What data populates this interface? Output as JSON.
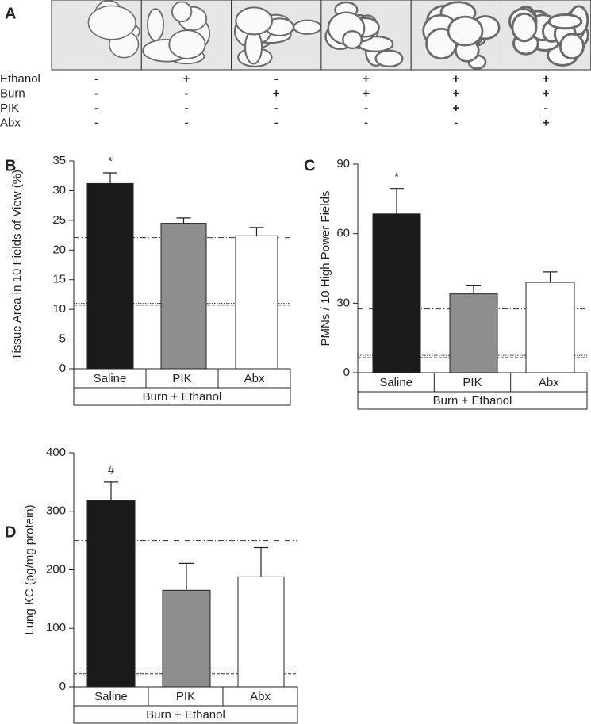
{
  "panel_a": {
    "label": "A",
    "rows": [
      {
        "name": "Ethanol",
        "values": [
          "-",
          "+",
          "-",
          "+",
          "+",
          "+"
        ]
      },
      {
        "name": "Burn",
        "values": [
          "-",
          "-",
          "+",
          "+",
          "+",
          "+"
        ]
      },
      {
        "name": "PIK",
        "values": [
          "-",
          "-",
          "-",
          "-",
          "+",
          "-"
        ]
      },
      {
        "name": "Abx",
        "values": [
          "-",
          "-",
          "-",
          "-",
          "-",
          "+"
        ]
      }
    ]
  },
  "chart_data": [
    {
      "type": "bar",
      "label": "B",
      "y_label": "Tissue Area in 10 Fields of View (%)",
      "categories": [
        "Saline",
        "PIK",
        "Abx"
      ],
      "group_label": "Burn + Ethanol",
      "values": [
        31.2,
        24.5,
        22.4
      ],
      "errors": [
        1.8,
        0.9,
        1.4
      ],
      "colors": [
        "#1a1a1a",
        "#8e8e8e",
        "#ffffff"
      ],
      "annotations": [
        "*",
        null,
        null
      ],
      "reference_lines": [
        {
          "value": 22.1,
          "style": "dashdot"
        },
        {
          "value": 11,
          "style": "dotted"
        },
        {
          "value": 10.7,
          "style": "dashed"
        }
      ],
      "ylim": [
        0,
        35
      ],
      "yticks": [
        0,
        5,
        10,
        15,
        20,
        25,
        30,
        35
      ]
    },
    {
      "type": "bar",
      "label": "C",
      "y_label": "PMNs / 10 High Power Fields",
      "categories": [
        "Saline",
        "PIK",
        "Abx"
      ],
      "group_label": "Burn + Ethanol",
      "values": [
        68.5,
        34,
        39
      ],
      "errors": [
        11,
        3.5,
        4.5
      ],
      "colors": [
        "#1a1a1a",
        "#8e8e8e",
        "#ffffff"
      ],
      "annotations": [
        "*",
        null,
        null
      ],
      "reference_lines": [
        {
          "value": 27.5,
          "style": "dashdot"
        },
        {
          "value": 7.5,
          "style": "dotted"
        },
        {
          "value": 6.5,
          "style": "dashed"
        }
      ],
      "ylim": [
        0,
        90
      ],
      "yticks": [
        0,
        30,
        60,
        90
      ]
    },
    {
      "type": "bar",
      "label": "D",
      "y_label": "Lung KC (pg/mg protein)",
      "categories": [
        "Saline",
        "PIK",
        "Abx"
      ],
      "group_label": "Burn + Ethanol",
      "values": [
        318,
        165,
        188
      ],
      "errors": [
        32,
        46,
        50
      ],
      "colors": [
        "#1a1a1a",
        "#8e8e8e",
        "#ffffff"
      ],
      "annotations": [
        "#",
        null,
        null
      ],
      "reference_lines": [
        {
          "value": 250,
          "style": "dashdot"
        },
        {
          "value": 25,
          "style": "dotted"
        },
        {
          "value": 22,
          "style": "dashed"
        }
      ],
      "ylim": [
        0,
        400
      ],
      "yticks": [
        0,
        100,
        200,
        300,
        400
      ]
    }
  ]
}
